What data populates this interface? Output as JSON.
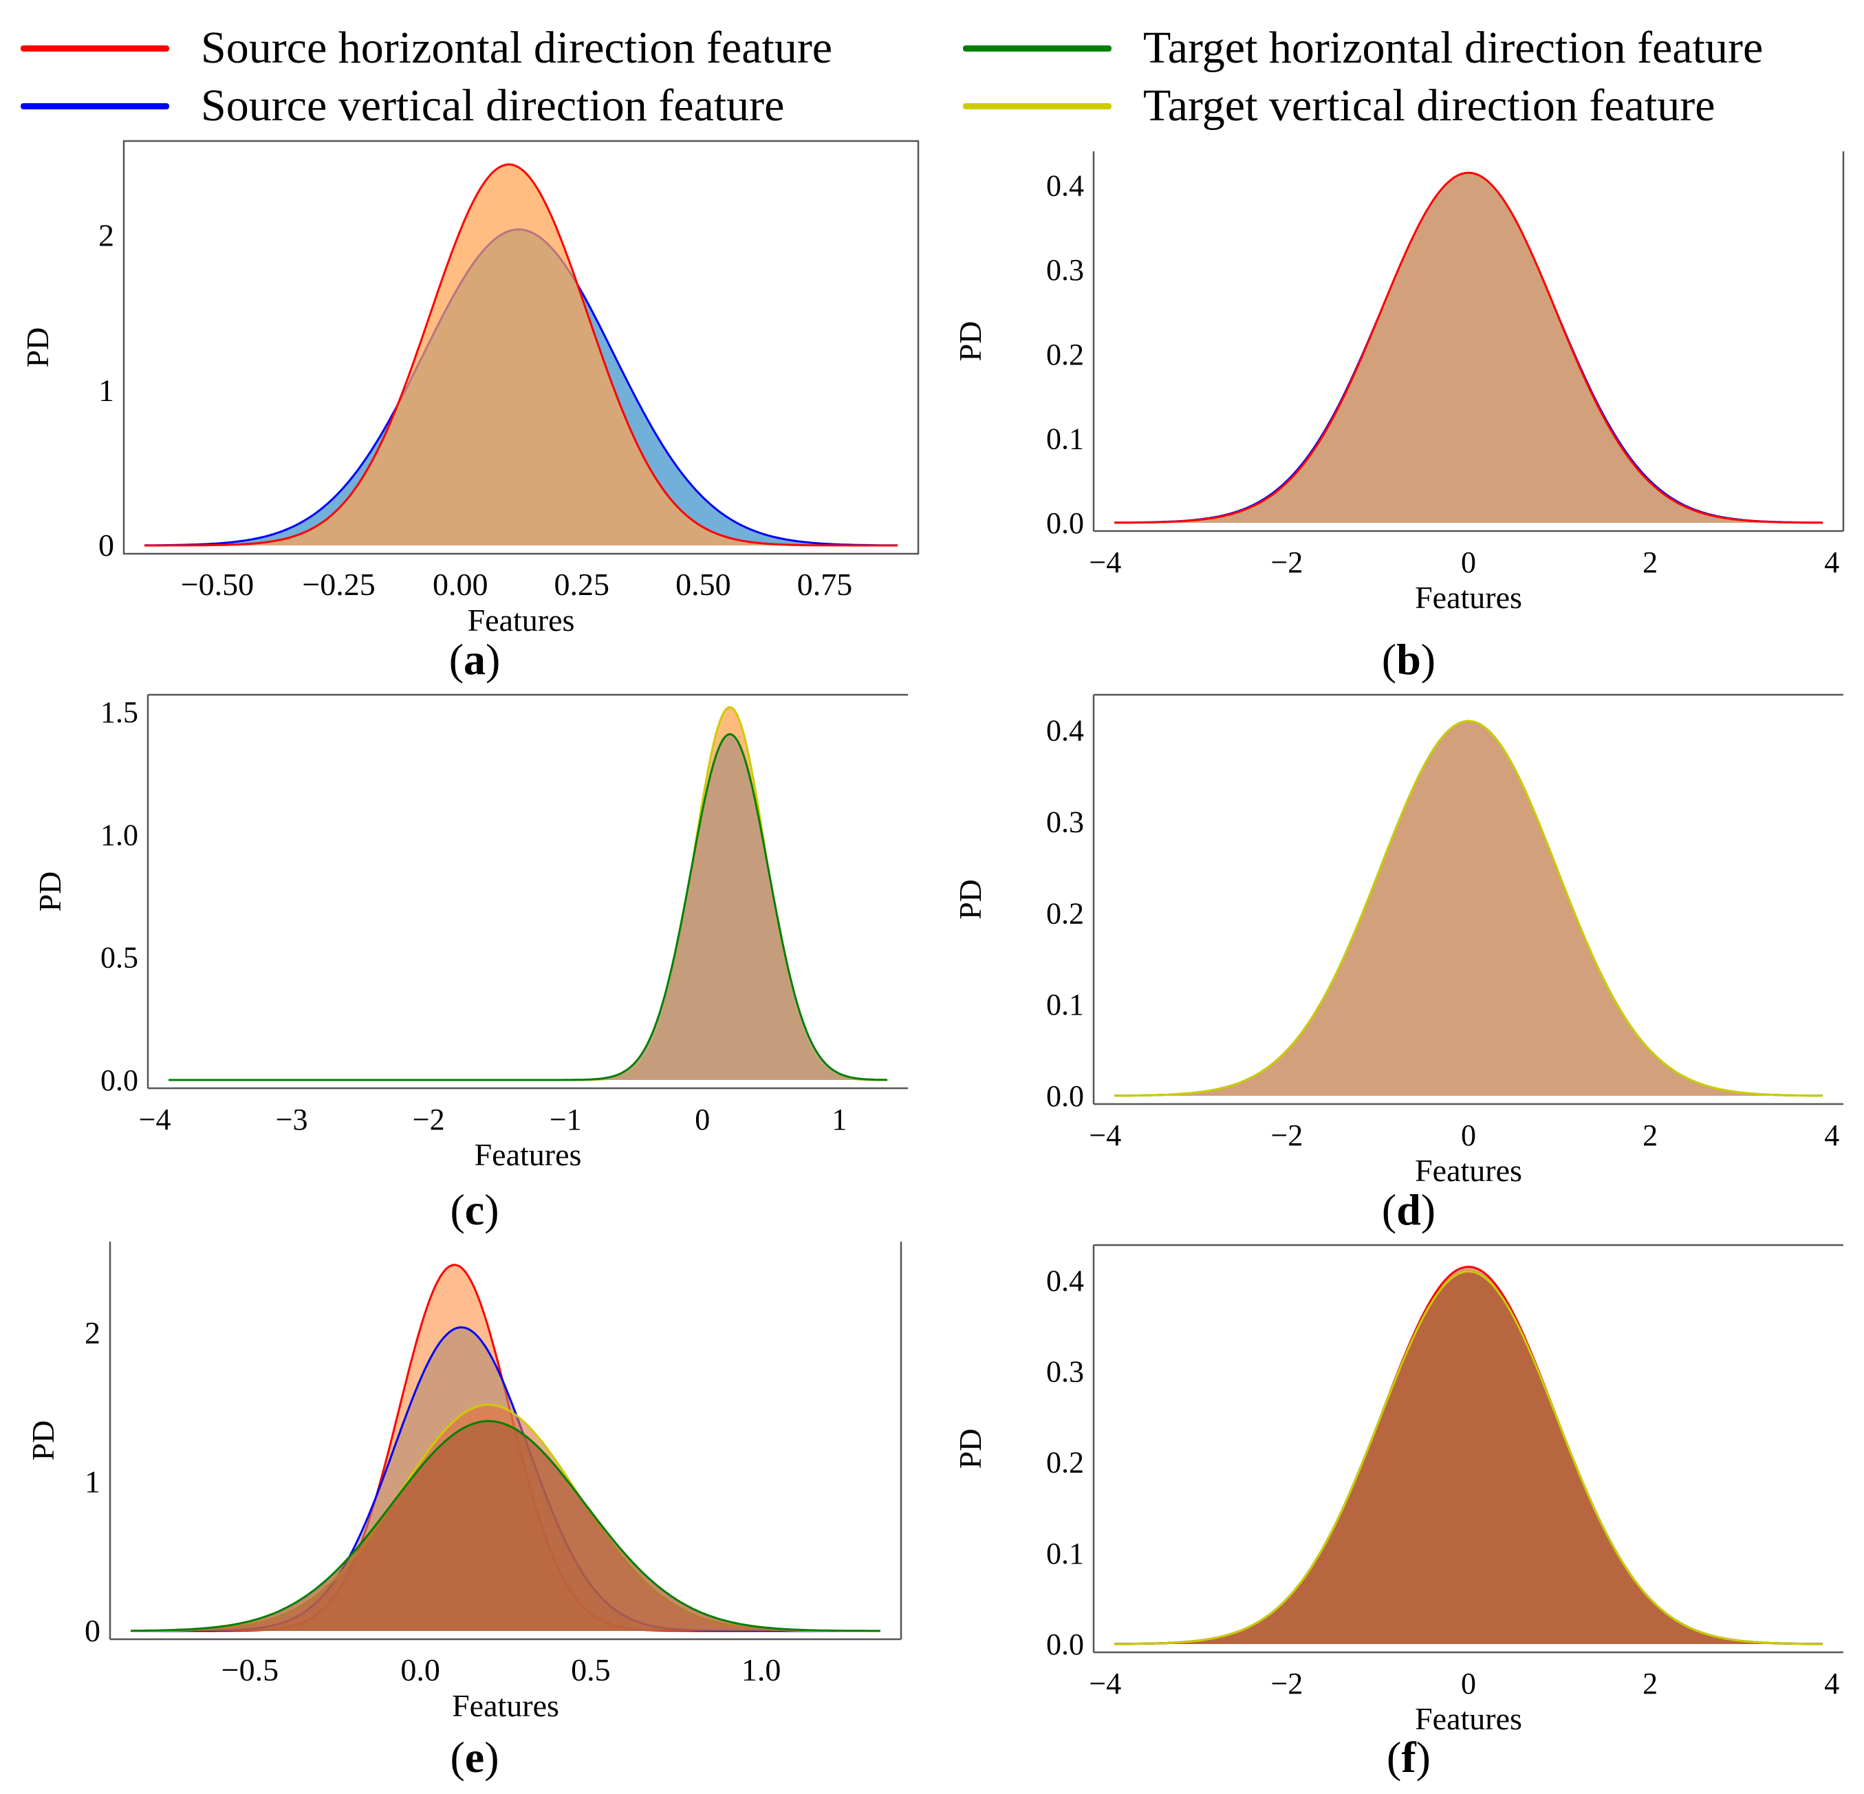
{
  "legend": [
    {
      "label": "Source horizontal direction feature",
      "color": "#ff0000"
    },
    {
      "label": "Source vertical direction feature",
      "color": "#0000ff"
    },
    {
      "label": "Target horizontal direction feature",
      "color": "#008000"
    },
    {
      "label": "Target vertical direction feature",
      "color": "#cccc00"
    }
  ],
  "chart_data": [
    {
      "type": "area",
      "id": "a",
      "caption": "a",
      "xlabel": "Features",
      "ylabel": "PD",
      "xlim": [
        -0.65,
        0.9
      ],
      "ylim": [
        0,
        2.5
      ],
      "xticks": [
        -0.5,
        -0.25,
        0.0,
        0.25,
        0.5,
        0.75
      ],
      "xtick_labels": [
        "−0.50",
        "−0.25",
        "0.00",
        "0.25",
        "0.50",
        "0.75"
      ],
      "yticks": [
        0,
        1,
        2
      ],
      "ytick_labels": [
        "0",
        "1",
        "2"
      ],
      "series": [
        {
          "name": "Source vertical direction feature",
          "mean": 0.12,
          "peak": 2.04,
          "line": "#0000ff",
          "fill": "#4f9bd0",
          "opacity": 0.8
        },
        {
          "name": "Source horizontal direction feature",
          "mean": 0.1,
          "peak": 2.46,
          "line": "#ff0000",
          "fill": "#ffa450",
          "opacity": 0.72
        }
      ]
    },
    {
      "type": "area",
      "id": "b",
      "caption": "b",
      "xlabel": "Features",
      "ylabel": "PD",
      "xlim": [
        -3.9,
        3.9
      ],
      "ylim": [
        0,
        0.42
      ],
      "xticks": [
        -4,
        -2,
        0,
        2,
        4
      ],
      "xtick_labels": [
        "−4",
        "−2",
        "0",
        "2",
        "4"
      ],
      "yticks": [
        0,
        0.1,
        0.2,
        0.3,
        0.4
      ],
      "ytick_labels": [
        "0.0",
        "0.1",
        "0.2",
        "0.3",
        "0.4"
      ],
      "series": [
        {
          "name": "Source vertical direction feature",
          "mean": 0,
          "peak": 0.41,
          "line": "#0000ff",
          "fill": "#4f9bd0",
          "opacity": 0.8
        },
        {
          "name": "Source horizontal direction feature",
          "mean": 0,
          "peak": 0.415,
          "line": "#ff0000",
          "fill": "#d2a07a",
          "opacity": 1.0
        }
      ]
    },
    {
      "type": "area",
      "id": "c",
      "caption": "c",
      "xlabel": "Features",
      "ylabel": "PD",
      "xlim": [
        -3.9,
        1.35
      ],
      "ylim": [
        0,
        1.5
      ],
      "xticks": [
        -4,
        -3,
        -2,
        -1,
        0,
        1
      ],
      "xtick_labels": [
        "−4",
        "−3",
        "−2",
        "−1",
        "0",
        "1"
      ],
      "yticks": [
        0,
        0.5,
        1.0,
        1.5
      ],
      "ytick_labels": [
        "0.0",
        "0.5",
        "1.0",
        "1.5"
      ],
      "series": [
        {
          "name": "Target vertical direction feature",
          "mean": 0.2,
          "peak": 1.52,
          "line": "#cccc00",
          "fill": "#ffa450",
          "opacity": 0.75
        },
        {
          "name": "Target horizontal direction feature",
          "mean": 0.2,
          "peak": 1.41,
          "line": "#008000",
          "fill": "#c09a7c",
          "opacity": 0.9
        }
      ]
    },
    {
      "type": "area",
      "id": "d",
      "caption": "d",
      "xlabel": "Features",
      "ylabel": "PD",
      "xlim": [
        -3.9,
        3.9
      ],
      "ylim": [
        0,
        0.42
      ],
      "xticks": [
        -4,
        -2,
        0,
        2,
        4
      ],
      "xtick_labels": [
        "−4",
        "−2",
        "0",
        "2",
        "4"
      ],
      "yticks": [
        0,
        0.1,
        0.2,
        0.3,
        0.4
      ],
      "ytick_labels": [
        "0.0",
        "0.1",
        "0.2",
        "0.3",
        "0.4"
      ],
      "series": [
        {
          "name": "Target horizontal direction feature",
          "mean": 0,
          "peak": 0.41,
          "line": "#008000",
          "fill": "#d2a07a",
          "opacity": 1.0
        },
        {
          "name": "Target vertical direction feature",
          "mean": 0,
          "peak": 0.41,
          "line": "#cccc00",
          "fill": "#d2a07a",
          "opacity": 1.0
        }
      ]
    },
    {
      "type": "area",
      "id": "e",
      "caption": "e",
      "xlabel": "Features",
      "ylabel": "PD",
      "xlim": [
        -0.85,
        1.35
      ],
      "ylim": [
        0,
        2.5
      ],
      "xticks": [
        -0.5,
        0.0,
        0.5,
        1.0
      ],
      "xtick_labels": [
        "−0.5",
        "0.0",
        "0.5",
        "1.0"
      ],
      "yticks": [
        0,
        1,
        2
      ],
      "ytick_labels": [
        "0",
        "1",
        "2"
      ],
      "series": [
        {
          "name": "Source horizontal direction feature",
          "mean": 0.1,
          "peak": 2.46,
          "line": "#ff0000",
          "fill": "#ffa060",
          "opacity": 0.7
        },
        {
          "name": "Source vertical direction feature",
          "mean": 0.12,
          "peak": 2.04,
          "line": "#0000ff",
          "fill": "#b08a70",
          "opacity": 0.6
        },
        {
          "name": "Target vertical direction feature",
          "mean": 0.2,
          "peak": 1.52,
          "line": "#cccc00",
          "fill": "#e07040",
          "opacity": 0.6
        },
        {
          "name": "Target horizontal direction feature",
          "mean": 0.2,
          "peak": 1.41,
          "line": "#008000",
          "fill": "#b0603a",
          "opacity": 0.75
        }
      ]
    },
    {
      "type": "area",
      "id": "f",
      "caption": "f",
      "xlabel": "Features",
      "ylabel": "PD",
      "xlim": [
        -3.9,
        3.9
      ],
      "ylim": [
        0,
        0.42
      ],
      "xticks": [
        -4,
        -2,
        0,
        2,
        4
      ],
      "xtick_labels": [
        "−4",
        "−2",
        "0",
        "2",
        "4"
      ],
      "yticks": [
        0,
        0.1,
        0.2,
        0.3,
        0.4
      ],
      "ytick_labels": [
        "0.0",
        "0.1",
        "0.2",
        "0.3",
        "0.4"
      ],
      "series": [
        {
          "name": "Source horizontal direction feature",
          "mean": 0,
          "peak": 0.415,
          "line": "#ff0000",
          "fill": "#e07050",
          "opacity": 0.7
        },
        {
          "name": "Source vertical direction feature",
          "mean": 0,
          "peak": 0.41,
          "line": "#0000ff",
          "fill": "#b0603a",
          "opacity": 0.7
        },
        {
          "name": "Target horizontal direction feature",
          "mean": 0,
          "peak": 0.41,
          "line": "#008000",
          "fill": "#b0603a",
          "opacity": 0.7
        },
        {
          "name": "Target vertical direction feature",
          "mean": 0,
          "peak": 0.41,
          "line": "#cccc00",
          "fill": "#b86640",
          "opacity": 1.0
        }
      ]
    }
  ]
}
